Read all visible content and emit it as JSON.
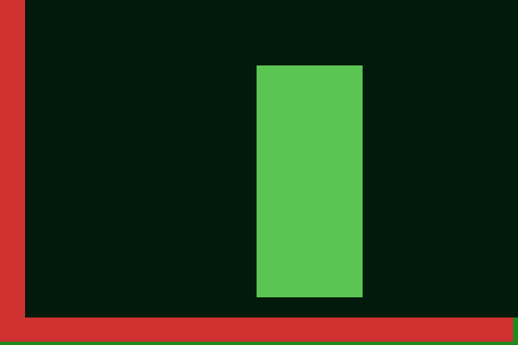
{
  "colors": {
    "background": "#011a0b",
    "red": "#cf3131",
    "green_rect": "#5bc553",
    "green_edge": "#1f8a1d"
  },
  "shapes": [
    {
      "name": "background-fill",
      "color_key": "background"
    },
    {
      "name": "red-bar-left",
      "color_key": "red"
    },
    {
      "name": "red-bar-bottom",
      "color_key": "red"
    },
    {
      "name": "green-edge-right",
      "color_key": "green_edge"
    },
    {
      "name": "green-edge-bottom",
      "color_key": "green_edge"
    },
    {
      "name": "green-rectangle",
      "color_key": "green_rect"
    }
  ]
}
